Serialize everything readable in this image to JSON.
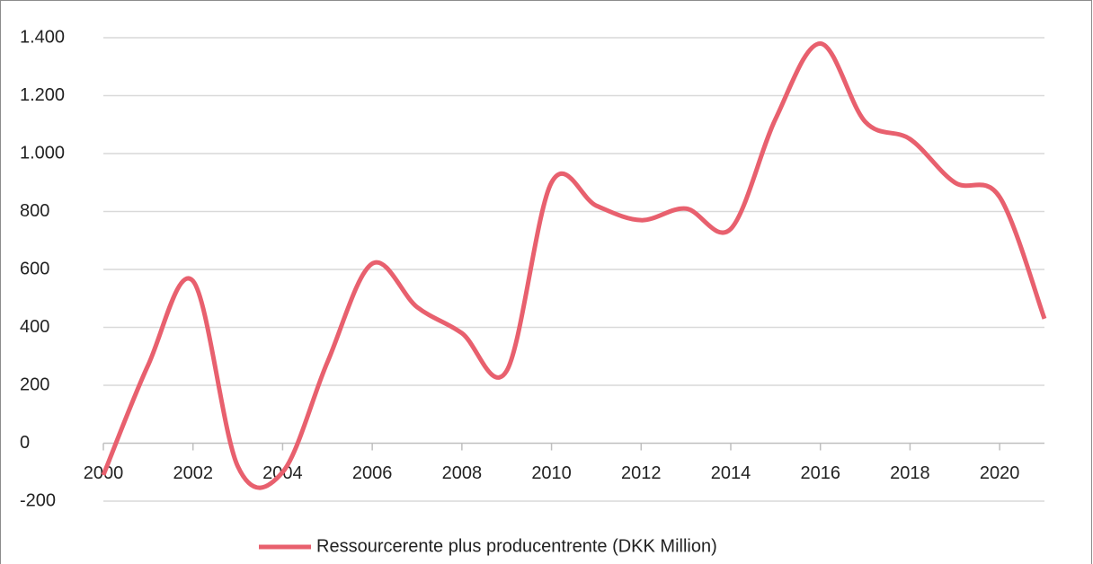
{
  "chart_data": {
    "type": "line",
    "x": [
      2000,
      2001,
      2002,
      2003,
      2004,
      2005,
      2006,
      2007,
      2008,
      2009,
      2010,
      2011,
      2012,
      2013,
      2014,
      2015,
      2016,
      2017,
      2018,
      2019,
      2020,
      2021
    ],
    "series": [
      {
        "name": "Ressourcerente plus producentrente (DKK Million)",
        "color": "#e8606e",
        "values": [
          -110,
          270,
          560,
          -80,
          -100,
          280,
          620,
          470,
          380,
          250,
          900,
          820,
          770,
          810,
          740,
          1120,
          1380,
          1110,
          1050,
          900,
          850,
          430
        ]
      }
    ],
    "xlim": [
      2000,
      2021
    ],
    "xticks": [
      2000,
      2002,
      2004,
      2006,
      2008,
      2010,
      2012,
      2014,
      2016,
      2018,
      2020
    ],
    "ylim": [
      -200,
      1400
    ],
    "yticks": [
      -200,
      0,
      200,
      400,
      600,
      800,
      {
        "value": 1000,
        "label": "1.000"
      },
      {
        "value": 1200,
        "label": "1.200"
      },
      {
        "value": 1400,
        "label": "1.400"
      }
    ],
    "grid": true,
    "smooth": true,
    "legend": "bottom"
  }
}
